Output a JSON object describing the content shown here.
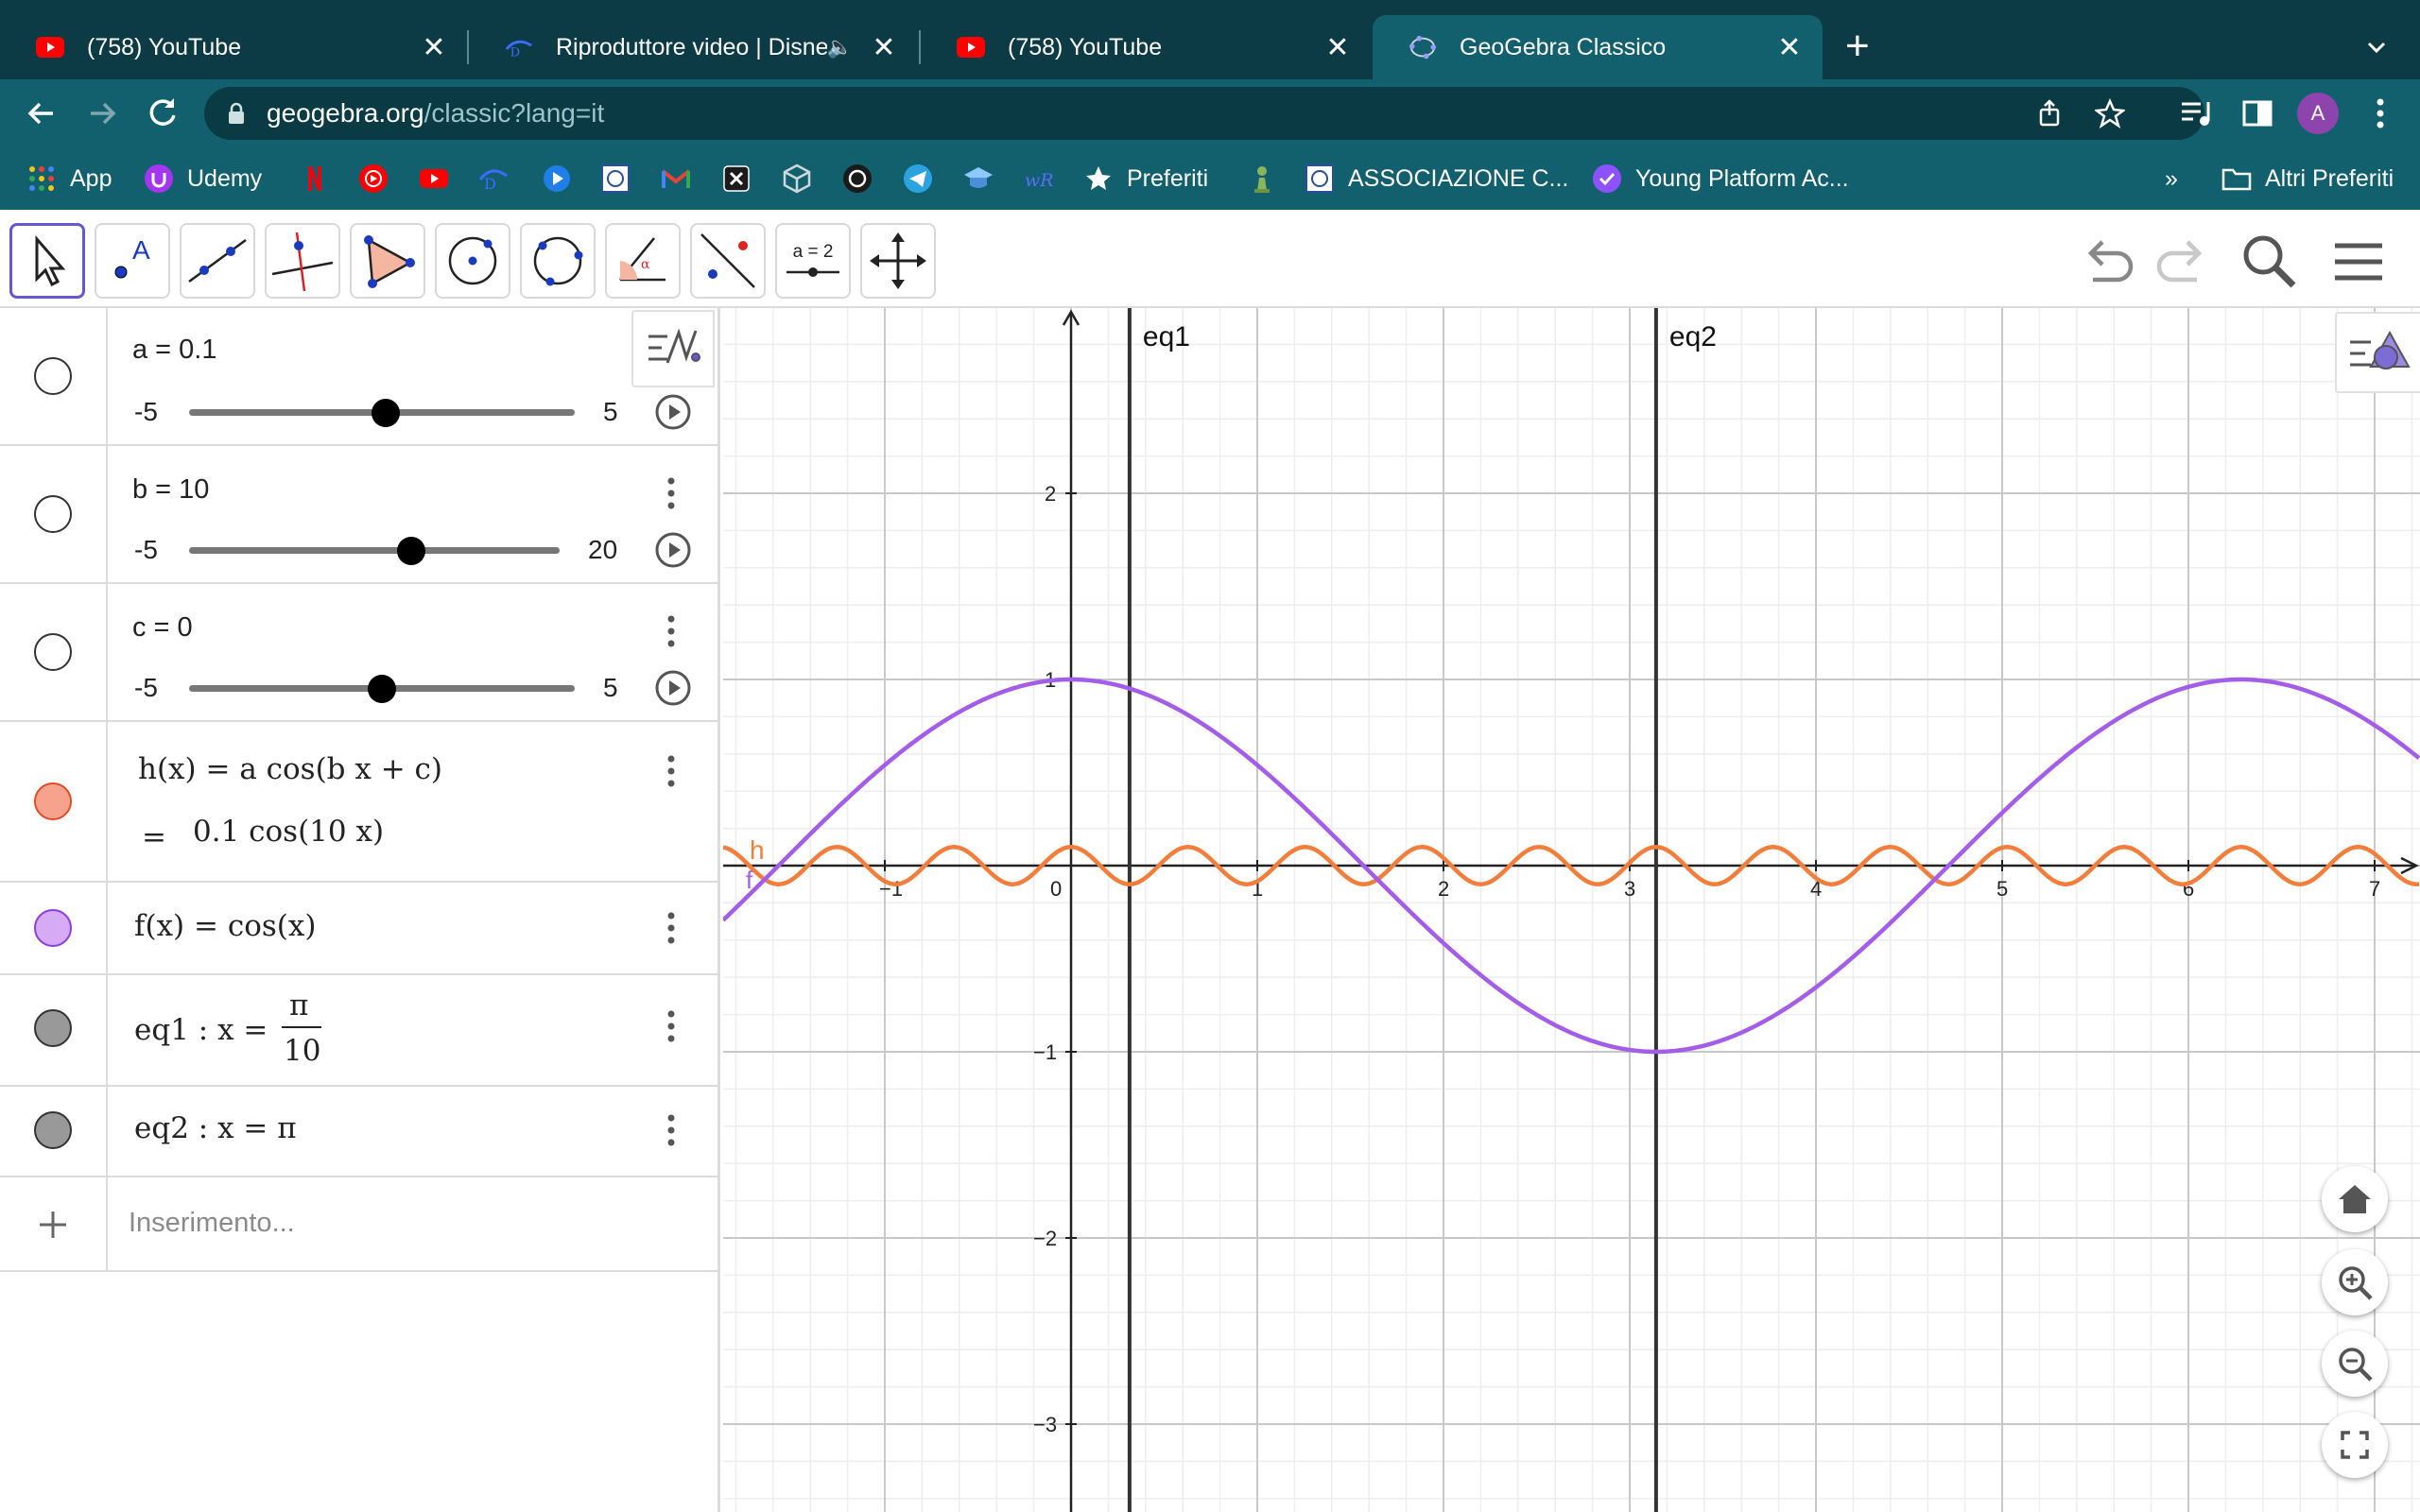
{
  "browser": {
    "tabs": [
      {
        "title": "(758) YouTube",
        "favicon": "youtube-icon"
      },
      {
        "title": "Riproduttore video | Disney",
        "favicon": "disney-icon",
        "audio": "🔈"
      },
      {
        "title": "(758) YouTube",
        "favicon": "youtube-icon"
      },
      {
        "title": "GeoGebra Classico",
        "favicon": "geogebra-icon",
        "active": true
      }
    ],
    "close_glyph": "✕",
    "new_tab_glyph": "+",
    "url_host": "geogebra.org",
    "url_path": "/classic?lang=it",
    "avatar_letter": "A",
    "colors": {
      "tabstrip": "#0d3b45",
      "toolbar": "#12606e",
      "omnibox": "#0a3a44"
    }
  },
  "bookmarks": {
    "apps": "App",
    "udemy": "Udemy",
    "preferiti": "Preferiti",
    "associazione": "ASSOCIAZIONE C...",
    "young_platform": "Young Platform Ac...",
    "more": "»",
    "altri_preferiti": "Altri Preferiti"
  },
  "ggb_toolbar": {
    "tools": [
      "move-tool",
      "point-tool",
      "line-tool",
      "perpendicular-tool",
      "polygon-tool",
      "circle-center-tool",
      "circle-three-points-tool",
      "angle-tool",
      "reflect-tool",
      "slider-tool",
      "move-graphics-tool"
    ],
    "slider_tool_label": "a = 2"
  },
  "algebra": {
    "sliders": [
      {
        "name": "a",
        "text": "a = 0.1",
        "min": "-5",
        "max": "5",
        "value": 0.1,
        "min_v": -5,
        "max_v": 5
      },
      {
        "name": "b",
        "text": "b = 10",
        "min": "-5",
        "max": "20",
        "value": 10,
        "min_v": -5,
        "max_v": 20
      },
      {
        "name": "c",
        "text": "c = 0",
        "min": "-5",
        "max": "5",
        "value": 0,
        "min_v": -5,
        "max_v": 5
      }
    ],
    "h_def": "h(x)  =  a  cos(b x + c)",
    "h_eq": "=",
    "h_val": "0.1  cos(10 x)",
    "f_def": "f(x)  =  cos(x)",
    "eq1_prefix": "eq1 :  x  =",
    "eq1_num": "π",
    "eq1_den": "10",
    "eq2": "eq2 :  x  =  π",
    "input_placeholder": "Inserimento...",
    "colors": {
      "h": "#f7a28c",
      "f": "#d6aaf5",
      "eq": "#999999"
    }
  },
  "chart_data": {
    "type": "line",
    "x_ticks": [
      "-1",
      "0",
      "1",
      "2",
      "3",
      "4",
      "5",
      "6",
      "7"
    ],
    "y_ticks": [
      "2",
      "1",
      "-1",
      "-2",
      "-3"
    ],
    "xlim": [
      -1.8,
      7.3
    ],
    "ylim": [
      -3.5,
      3.0
    ],
    "grid": true,
    "series": [
      {
        "name": "h",
        "label": "h",
        "expr": "0.1*cos(10x)",
        "color": "#f37e3c"
      },
      {
        "name": "f",
        "label": "f",
        "expr": "cos(x)",
        "color": "#a35de8"
      }
    ],
    "vertical_lines": [
      {
        "name": "eq1",
        "label": "eq1",
        "x": 0.3142
      },
      {
        "name": "eq2",
        "label": "eq2",
        "x": 3.1416
      }
    ]
  }
}
